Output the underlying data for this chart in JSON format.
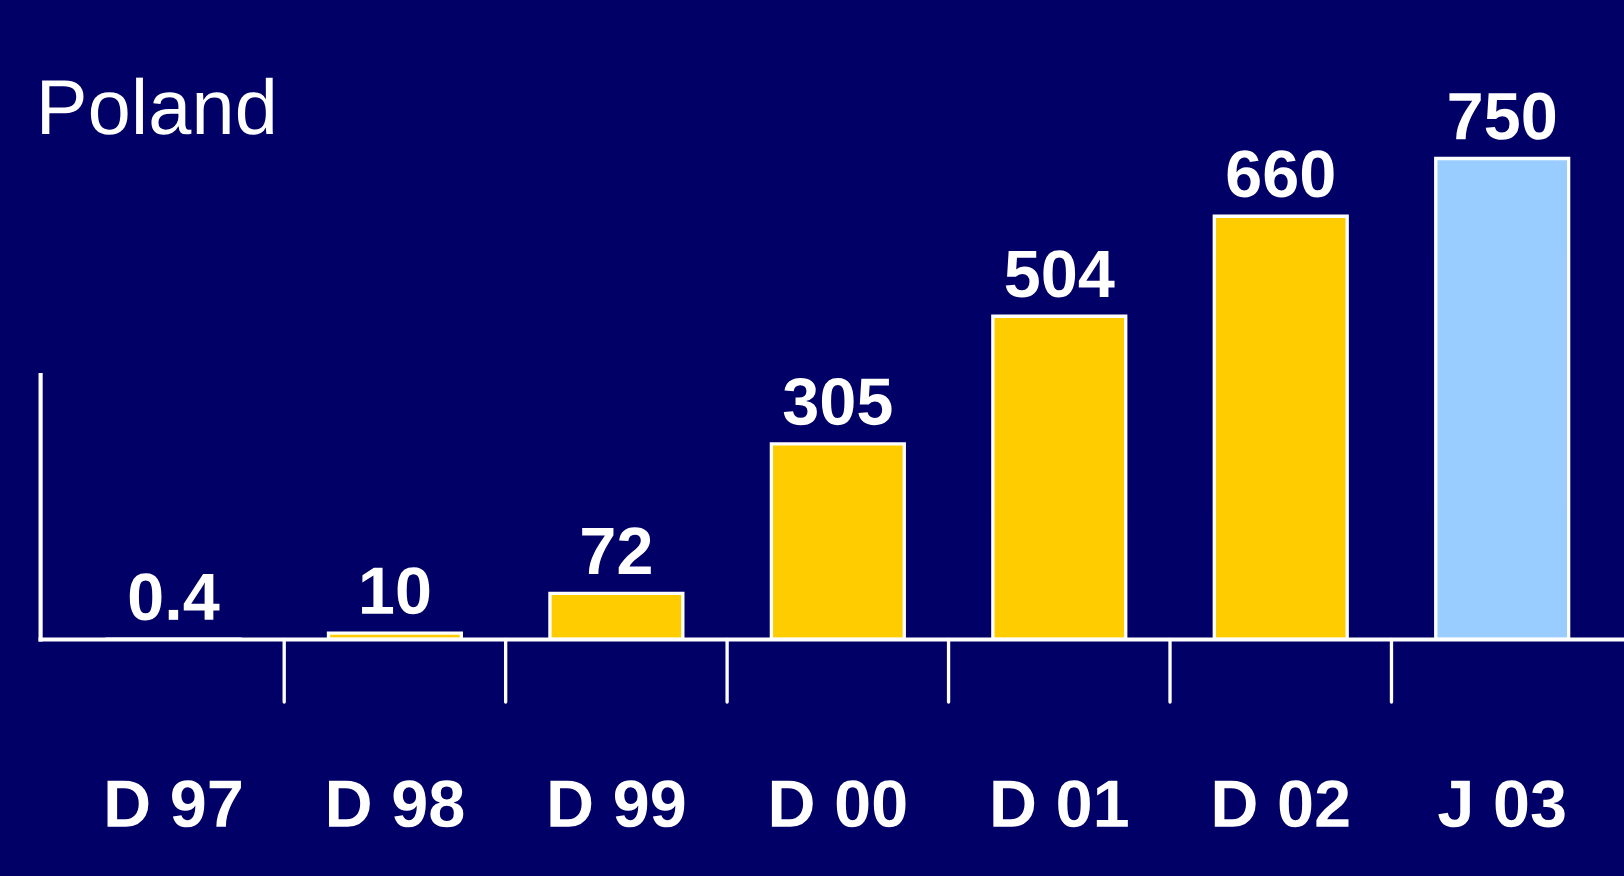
{
  "chart_data": {
    "type": "bar",
    "title": "Poland",
    "categories": [
      "D 97",
      "D 98",
      "D 99",
      "D 00",
      "D 01",
      "D 02",
      "J 03"
    ],
    "values": [
      0.4,
      10,
      72,
      305,
      504,
      660,
      750
    ],
    "colors": [
      "#ffcc00",
      "#ffcc00",
      "#ffcc00",
      "#ffcc00",
      "#ffcc00",
      "#ffcc00",
      "#99ccff"
    ],
    "data_labels": true,
    "tick_labels": "x",
    "grid": false,
    "legend": false
  }
}
